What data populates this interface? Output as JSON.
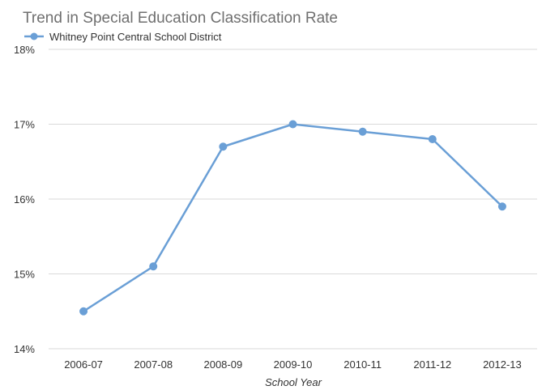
{
  "chart_data": {
    "type": "line",
    "title": "Trend in Special Education Classification Rate",
    "xlabel": "School Year",
    "ylabel": "",
    "categories": [
      "2006-07",
      "2007-08",
      "2008-09",
      "2009-10",
      "2010-11",
      "2011-12",
      "2012-13"
    ],
    "series": [
      {
        "name": "Whitney Point Central School District",
        "values": [
          14.5,
          15.1,
          16.7,
          17.0,
          16.9,
          16.8,
          15.9
        ],
        "color": "#6a9fd6"
      }
    ],
    "ylim": [
      14,
      18
    ],
    "yticks": [
      {
        "value": 14,
        "label": "14%"
      },
      {
        "value": 15,
        "label": "15%"
      },
      {
        "value": 16,
        "label": "16%"
      },
      {
        "value": 17,
        "label": "17%"
      },
      {
        "value": 18,
        "label": "18%"
      }
    ],
    "grid": true,
    "legend": "top-left"
  }
}
